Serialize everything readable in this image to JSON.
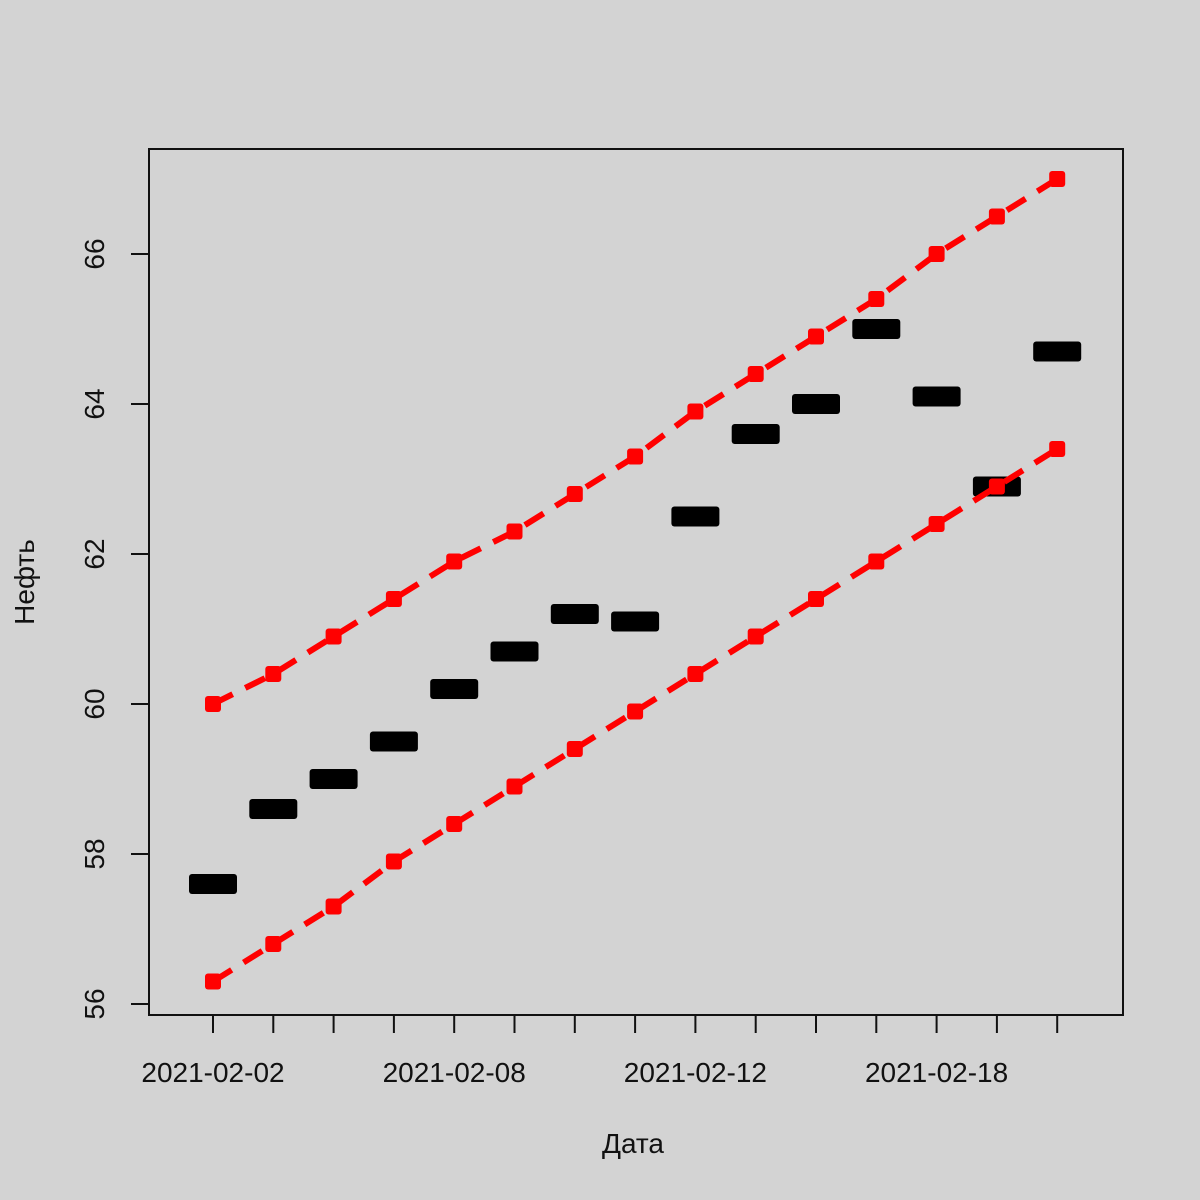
{
  "chart_data": {
    "type": "scatter",
    "title": "",
    "xlabel": "Дата",
    "ylabel": "Нефть",
    "x_tick_labels": [
      "2021-02-02",
      "2021-02-08",
      "2021-02-12",
      "2021-02-18"
    ],
    "y_ticks": [
      56,
      58,
      60,
      62,
      64,
      66
    ],
    "ylim": [
      55.9,
      67.5
    ],
    "grid": false,
    "legend": "none",
    "series": [
      {
        "marker": "bar",
        "color": "#000000",
        "x": [
          "2021-02-02",
          "2021-02-03",
          "2021-02-04",
          "2021-02-05",
          "2021-02-08",
          "2021-02-09",
          "2021-02-10",
          "2021-02-11",
          "2021-02-12",
          "2021-02-15",
          "2021-02-16",
          "2021-02-17",
          "2021-02-18",
          "2021-02-19",
          "2021-02-22"
        ],
        "y": [
          57.6,
          58.6,
          59.0,
          59.5,
          60.2,
          60.7,
          61.2,
          61.1,
          62.5,
          63.6,
          64.0,
          65.0,
          64.1,
          62.9,
          64.7
        ]
      },
      {
        "marker": "square",
        "line": "dashed",
        "color": "#ff0000",
        "x": [
          "2021-02-02",
          "2021-02-03",
          "2021-02-04",
          "2021-02-05",
          "2021-02-08",
          "2021-02-09",
          "2021-02-10",
          "2021-02-11",
          "2021-02-12",
          "2021-02-15",
          "2021-02-16",
          "2021-02-17",
          "2021-02-18",
          "2021-02-19",
          "2021-02-22"
        ],
        "y": [
          60.0,
          60.4,
          60.9,
          61.4,
          61.9,
          62.3,
          62.8,
          63.3,
          63.9,
          64.4,
          64.9,
          65.4,
          66.0,
          66.5,
          67.0
        ]
      },
      {
        "marker": "square",
        "line": "dashed",
        "color": "#ff0000",
        "x": [
          "2021-02-02",
          "2021-02-03",
          "2021-02-04",
          "2021-02-05",
          "2021-02-08",
          "2021-02-09",
          "2021-02-10",
          "2021-02-11",
          "2021-02-12",
          "2021-02-15",
          "2021-02-16",
          "2021-02-17",
          "2021-02-18",
          "2021-02-19",
          "2021-02-22"
        ],
        "y": [
          56.3,
          56.8,
          57.3,
          57.9,
          58.4,
          58.9,
          59.4,
          59.9,
          60.4,
          60.9,
          61.4,
          61.9,
          62.4,
          62.9,
          63.4
        ]
      }
    ]
  }
}
